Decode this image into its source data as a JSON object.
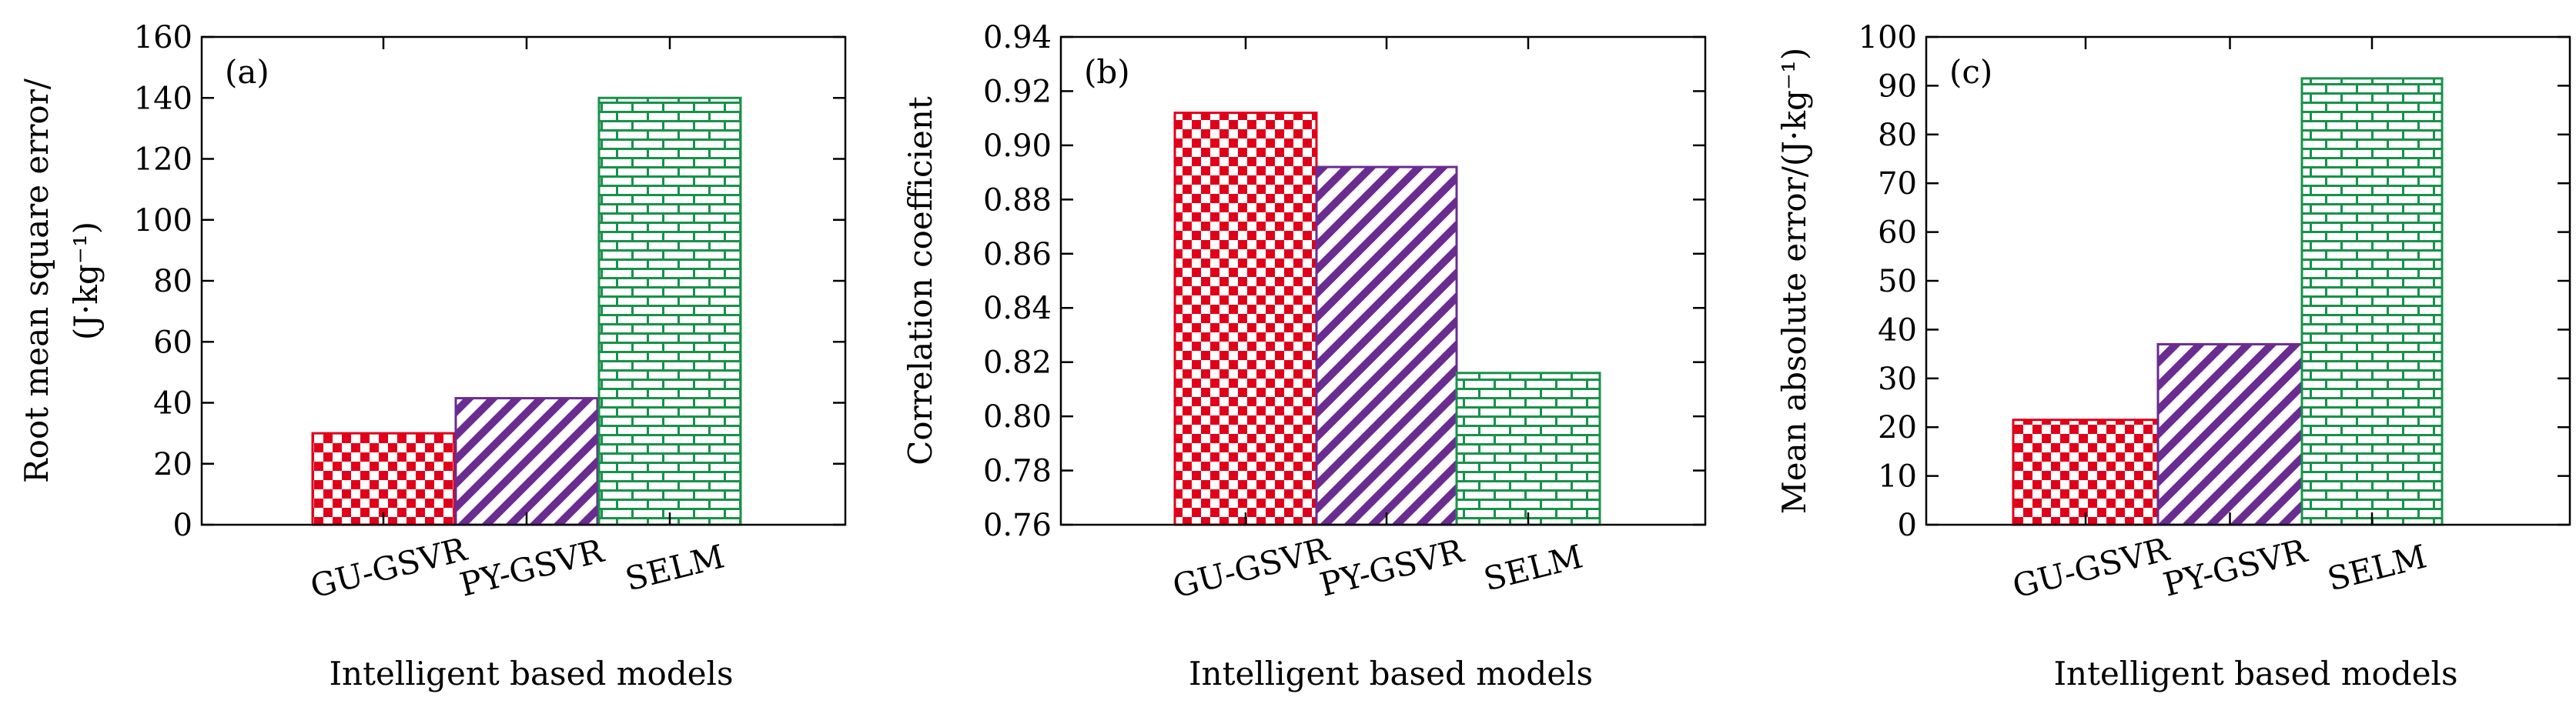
{
  "chart_data": [
    {
      "type": "bar",
      "panel_label": "(a)",
      "categories": [
        "GU-GSVR",
        "PY-GSVR",
        "SELM"
      ],
      "values": [
        30,
        41.5,
        140
      ],
      "xlabel": "Intelligent based models",
      "ylabel_lines": [
        "Root mean square error/",
        "(J·kg⁻¹)"
      ],
      "ylim": [
        0,
        160
      ],
      "yticks": [
        0,
        20,
        40,
        60,
        80,
        100,
        120,
        140,
        160
      ],
      "ytick_labels": [
        "0",
        "20",
        "40",
        "60",
        "80",
        "100",
        "120",
        "140",
        "160"
      ],
      "grid": false
    },
    {
      "type": "bar",
      "panel_label": "(b)",
      "categories": [
        "GU-GSVR",
        "PY-GSVR",
        "SELM"
      ],
      "values": [
        0.912,
        0.892,
        0.816
      ],
      "xlabel": "Intelligent based models",
      "ylabel_lines": [
        "Correlation coefficient"
      ],
      "ylim": [
        0.76,
        0.94
      ],
      "yticks": [
        0.76,
        0.78,
        0.8,
        0.82,
        0.84,
        0.86,
        0.88,
        0.9,
        0.92,
        0.94
      ],
      "ytick_labels": [
        "0.76",
        "0.78",
        "0.80",
        "0.82",
        "0.84",
        "0.86",
        "0.88",
        "0.90",
        "0.92",
        "0.94"
      ],
      "grid": false
    },
    {
      "type": "bar",
      "panel_label": "(c)",
      "categories": [
        "GU-GSVR",
        "PY-GSVR",
        "SELM"
      ],
      "values": [
        21.5,
        37,
        91.5
      ],
      "xlabel": "Intelligent based models",
      "ylabel_lines": [
        "Mean absolute error/(J·kg⁻¹)"
      ],
      "ylim": [
        0,
        100
      ],
      "yticks": [
        0,
        10,
        20,
        30,
        40,
        50,
        60,
        70,
        80,
        90,
        100
      ],
      "ytick_labels": [
        "0",
        "10",
        "20",
        "30",
        "40",
        "50",
        "60",
        "70",
        "80",
        "90",
        "100"
      ],
      "grid": false
    }
  ],
  "colors": {
    "GU-GSVR": "#e0001a",
    "PY-GSVR": "#6a2c91",
    "SELM": "#18924a"
  },
  "patterns": {
    "GU-GSVR": "checkerboard",
    "PY-GSVR": "diagonal-stripes",
    "SELM": "brick"
  }
}
